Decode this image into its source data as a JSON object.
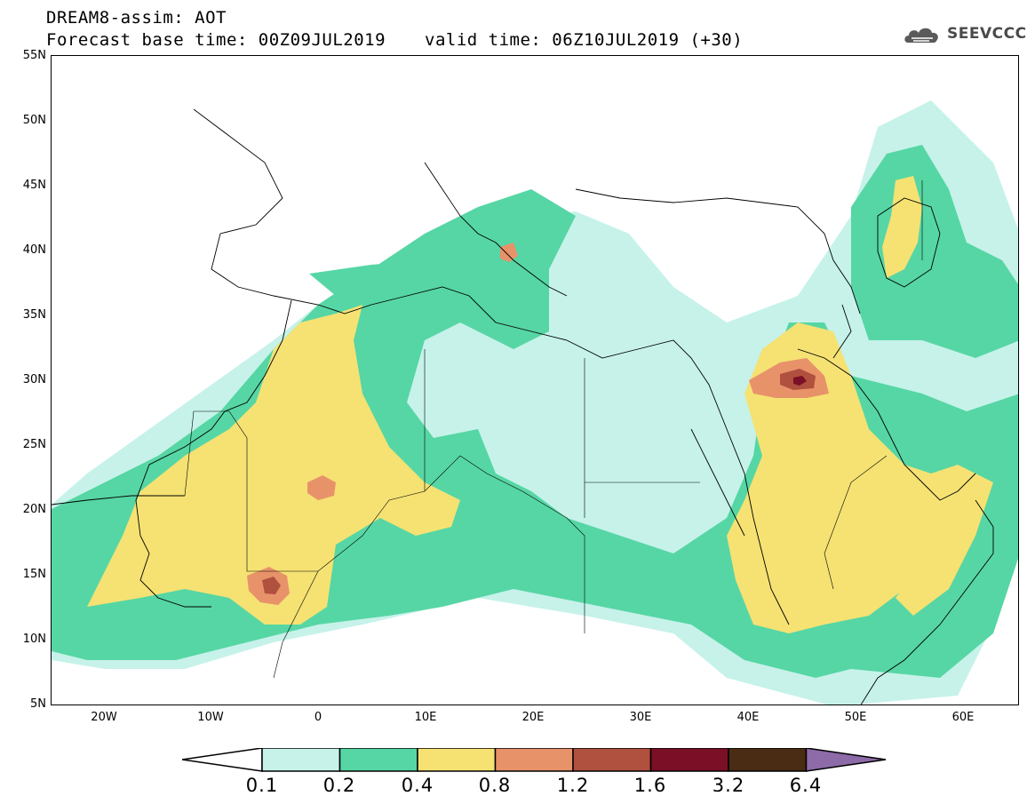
{
  "header": {
    "title": "DREAM8-assim: AOT",
    "base_time": "Forecast base time: 00Z09JUL2019",
    "valid_time": "valid time: 06Z10JUL2019 (+30)"
  },
  "logo": {
    "text": "SEEVCCC",
    "icon": "cloud-icon"
  },
  "map": {
    "lat_labels": [
      "55N",
      "50N",
      "45N",
      "40N",
      "35N",
      "30N",
      "25N",
      "20N",
      "15N",
      "10N",
      "5N"
    ],
    "lon_labels": [
      "20W",
      "10W",
      "0",
      "10E",
      "20E",
      "30E",
      "40E",
      "50E",
      "60E"
    ]
  },
  "colorbar": {
    "labels": [
      "0.1",
      "0.2",
      "0.4",
      "0.8",
      "1.2",
      "1.6",
      "3.2",
      "6.4"
    ],
    "colors": {
      "c1": "#c6f2ea",
      "c2": "#56d6a4",
      "c3": "#f5e273",
      "c4": "#e8926a",
      "c5": "#b0503e",
      "c6": "#7a0f26",
      "c7": "#4a2c14",
      "c8": "#8d6aa8"
    }
  }
}
